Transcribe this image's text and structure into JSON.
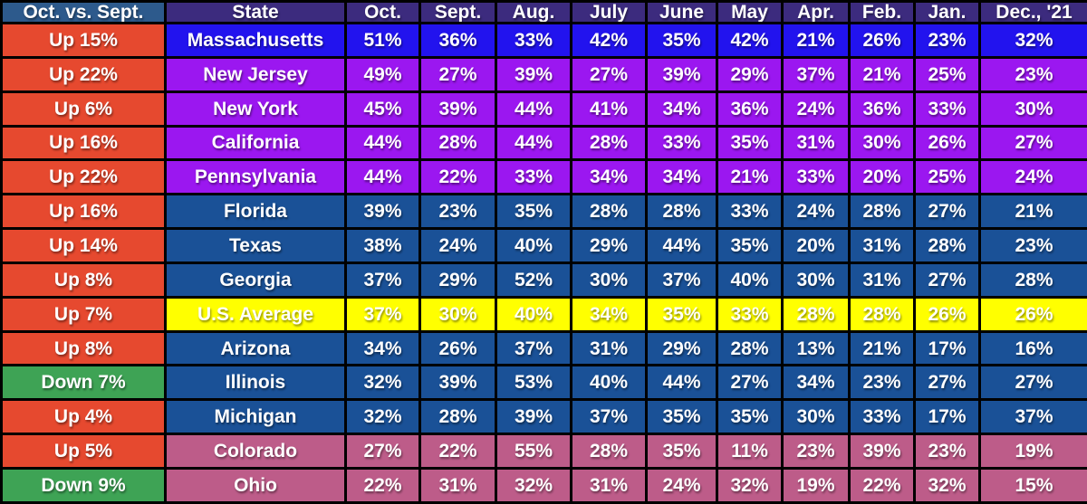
{
  "colors": {
    "header_first": "#2D5A8C",
    "header": "#3C2B7E",
    "up": "#E6492F",
    "down": "#3EA355",
    "blue": "#2213EE",
    "purple": "#9B17F0",
    "navy": "#1A5197",
    "yellow": "#FFFF00",
    "mauve": "#BD5C89",
    "border": "#000000"
  },
  "chart_data": {
    "type": "table",
    "value_format": "percent",
    "columns": [
      "Oct. vs. Sept.",
      "State",
      "Oct.",
      "Sept.",
      "Aug.",
      "July",
      "June",
      "May",
      "Apr.",
      "Feb.",
      "Jan.",
      "Dec., '21"
    ],
    "rows": [
      {
        "change": "Up 15%",
        "direction": "up",
        "state": "Massachusetts",
        "theme": "blue",
        "values": [
          51,
          36,
          33,
          42,
          35,
          42,
          21,
          26,
          23,
          32
        ]
      },
      {
        "change": "Up 22%",
        "direction": "up",
        "state": "New Jersey",
        "theme": "purple",
        "values": [
          49,
          27,
          39,
          27,
          39,
          29,
          37,
          21,
          25,
          23
        ]
      },
      {
        "change": "Up 6%",
        "direction": "up",
        "state": "New York",
        "theme": "purple",
        "values": [
          45,
          39,
          44,
          41,
          34,
          36,
          24,
          36,
          33,
          30
        ]
      },
      {
        "change": "Up 16%",
        "direction": "up",
        "state": "California",
        "theme": "purple",
        "values": [
          44,
          28,
          44,
          28,
          33,
          35,
          31,
          30,
          26,
          27
        ]
      },
      {
        "change": "Up 22%",
        "direction": "up",
        "state": "Pennsylvania",
        "theme": "purple",
        "values": [
          44,
          22,
          33,
          34,
          34,
          21,
          33,
          20,
          25,
          24
        ]
      },
      {
        "change": "Up 16%",
        "direction": "up",
        "state": "Florida",
        "theme": "navy",
        "values": [
          39,
          23,
          35,
          28,
          28,
          33,
          24,
          28,
          27,
          21
        ]
      },
      {
        "change": "Up 14%",
        "direction": "up",
        "state": "Texas",
        "theme": "navy",
        "values": [
          38,
          24,
          40,
          29,
          44,
          35,
          20,
          31,
          28,
          23
        ]
      },
      {
        "change": "Up 8%",
        "direction": "up",
        "state": "Georgia",
        "theme": "navy",
        "values": [
          37,
          29,
          52,
          30,
          37,
          40,
          30,
          31,
          27,
          28
        ]
      },
      {
        "change": "Up 7%",
        "direction": "up",
        "state": "U.S. Average",
        "theme": "yellow",
        "values": [
          37,
          30,
          40,
          34,
          35,
          33,
          28,
          28,
          26,
          26
        ]
      },
      {
        "change": "Up 8%",
        "direction": "up",
        "state": "Arizona",
        "theme": "navy",
        "values": [
          34,
          26,
          37,
          31,
          29,
          28,
          13,
          21,
          17,
          16
        ]
      },
      {
        "change": "Down 7%",
        "direction": "down",
        "state": "Illinois",
        "theme": "navy",
        "values": [
          32,
          39,
          53,
          40,
          44,
          27,
          34,
          23,
          27,
          27
        ]
      },
      {
        "change": "Up 4%",
        "direction": "up",
        "state": "Michigan",
        "theme": "navy",
        "values": [
          32,
          28,
          39,
          37,
          35,
          35,
          30,
          33,
          17,
          37
        ]
      },
      {
        "change": "Up 5%",
        "direction": "up",
        "state": "Colorado",
        "theme": "mauve",
        "values": [
          27,
          22,
          55,
          28,
          35,
          11,
          23,
          39,
          23,
          19
        ]
      },
      {
        "change": "Down 9%",
        "direction": "down",
        "state": "Ohio",
        "theme": "mauve",
        "values": [
          22,
          31,
          32,
          31,
          24,
          32,
          19,
          22,
          32,
          15
        ]
      }
    ]
  }
}
